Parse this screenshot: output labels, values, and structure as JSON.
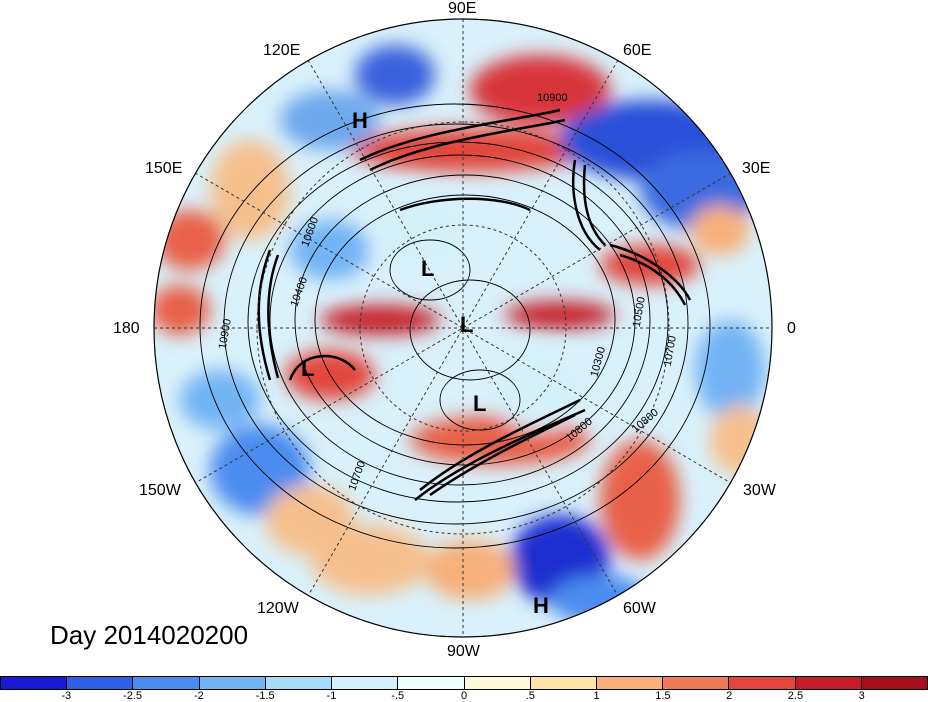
{
  "longitude_labels": [
    "90E",
    "60E",
    "30E",
    "0",
    "30W",
    "60W",
    "90W",
    "120W",
    "150W",
    "180",
    "150E",
    "120E"
  ],
  "centers": [
    {
      "type": "H",
      "label": "H"
    },
    {
      "type": "L",
      "label": "L"
    },
    {
      "type": "L",
      "label": "L"
    },
    {
      "type": "L",
      "label": "L"
    },
    {
      "type": "L",
      "label": "L"
    },
    {
      "type": "H",
      "label": "H"
    }
  ],
  "contour_labels": [
    "10900",
    "10400",
    "10800",
    "10900",
    "10700",
    "10500",
    "10300",
    "10700",
    "10800",
    "10600"
  ],
  "date_label": "Day 2014020200",
  "colorbar": {
    "ticks": [
      "-3",
      "-2.5",
      "-2",
      "-1.5",
      "-1",
      "-.5",
      "0",
      ".5",
      "1",
      "1.5",
      "2",
      "2.5",
      "3"
    ],
    "colors": [
      "#1a1ad6",
      "#2e5fe6",
      "#4b8cf0",
      "#73b4f5",
      "#a6dcf8",
      "#d4f1fb",
      "#eefbff",
      "#fff8d8",
      "#ffe4a8",
      "#f7b07a",
      "#ee7a58",
      "#e2453c",
      "#c41d2a",
      "#a50f1e"
    ]
  },
  "colors": {
    "cold_strong": "#1f2fd0",
    "cold": "#6fa8ea",
    "cool": "#cfeaf8",
    "warm": "#f6c08e",
    "hot": "#e34a3c",
    "hot_strong": "#b8141f"
  }
}
